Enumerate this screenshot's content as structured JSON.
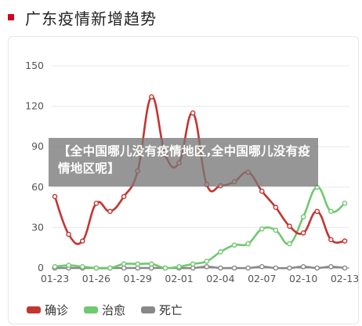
{
  "header": {
    "title": "广东疫情新增趋势"
  },
  "overlay_text": "【全中国哪儿没有疫情地区,全中国哪儿没有疫情地区呢】",
  "colors": {
    "confirmed": "#c23531",
    "recovered": "#6fc96f",
    "death": "#888888",
    "accent": "#d0021b"
  },
  "chart_data": {
    "type": "line",
    "title": "广东疫情新增趋势",
    "xlabel": "",
    "ylabel": "",
    "ylim": [
      0,
      150
    ],
    "yticks": [
      "0",
      "30",
      "60",
      "90",
      "120",
      "150"
    ],
    "xticks": [
      "01-23",
      "01-26",
      "01-29",
      "02-01",
      "02-04",
      "02-07",
      "02-10",
      "02-13"
    ],
    "x": [
      "01-23",
      "01-24",
      "01-25",
      "01-26",
      "01-27",
      "01-28",
      "01-29",
      "01-30",
      "01-31",
      "02-01",
      "02-02",
      "02-03",
      "02-04",
      "02-05",
      "02-06",
      "02-07",
      "02-08",
      "02-09",
      "02-10",
      "02-11",
      "02-12",
      "02-13"
    ],
    "series": [
      {
        "name": "确诊",
        "color": "#c23531",
        "values": [
          53,
          25,
          20,
          48,
          42,
          53,
          72,
          127,
          84,
          78,
          115,
          62,
          61,
          64,
          71,
          57,
          45,
          31,
          26,
          42,
          21,
          20
        ]
      },
      {
        "name": "治愈",
        "color": "#6fc96f",
        "values": [
          1,
          2,
          1,
          0,
          0,
          3,
          3,
          3,
          0,
          1,
          3,
          5,
          12,
          17,
          18,
          29,
          28,
          18,
          38,
          60,
          42,
          48
        ]
      },
      {
        "name": "死亡",
        "color": "#888888",
        "values": [
          0,
          0,
          0,
          0,
          0,
          0,
          0,
          0,
          0,
          0,
          0,
          1,
          0,
          0,
          0,
          1,
          0,
          0,
          1,
          0,
          1,
          0
        ]
      }
    ],
    "grid": true,
    "legend_position": "bottom-left"
  }
}
